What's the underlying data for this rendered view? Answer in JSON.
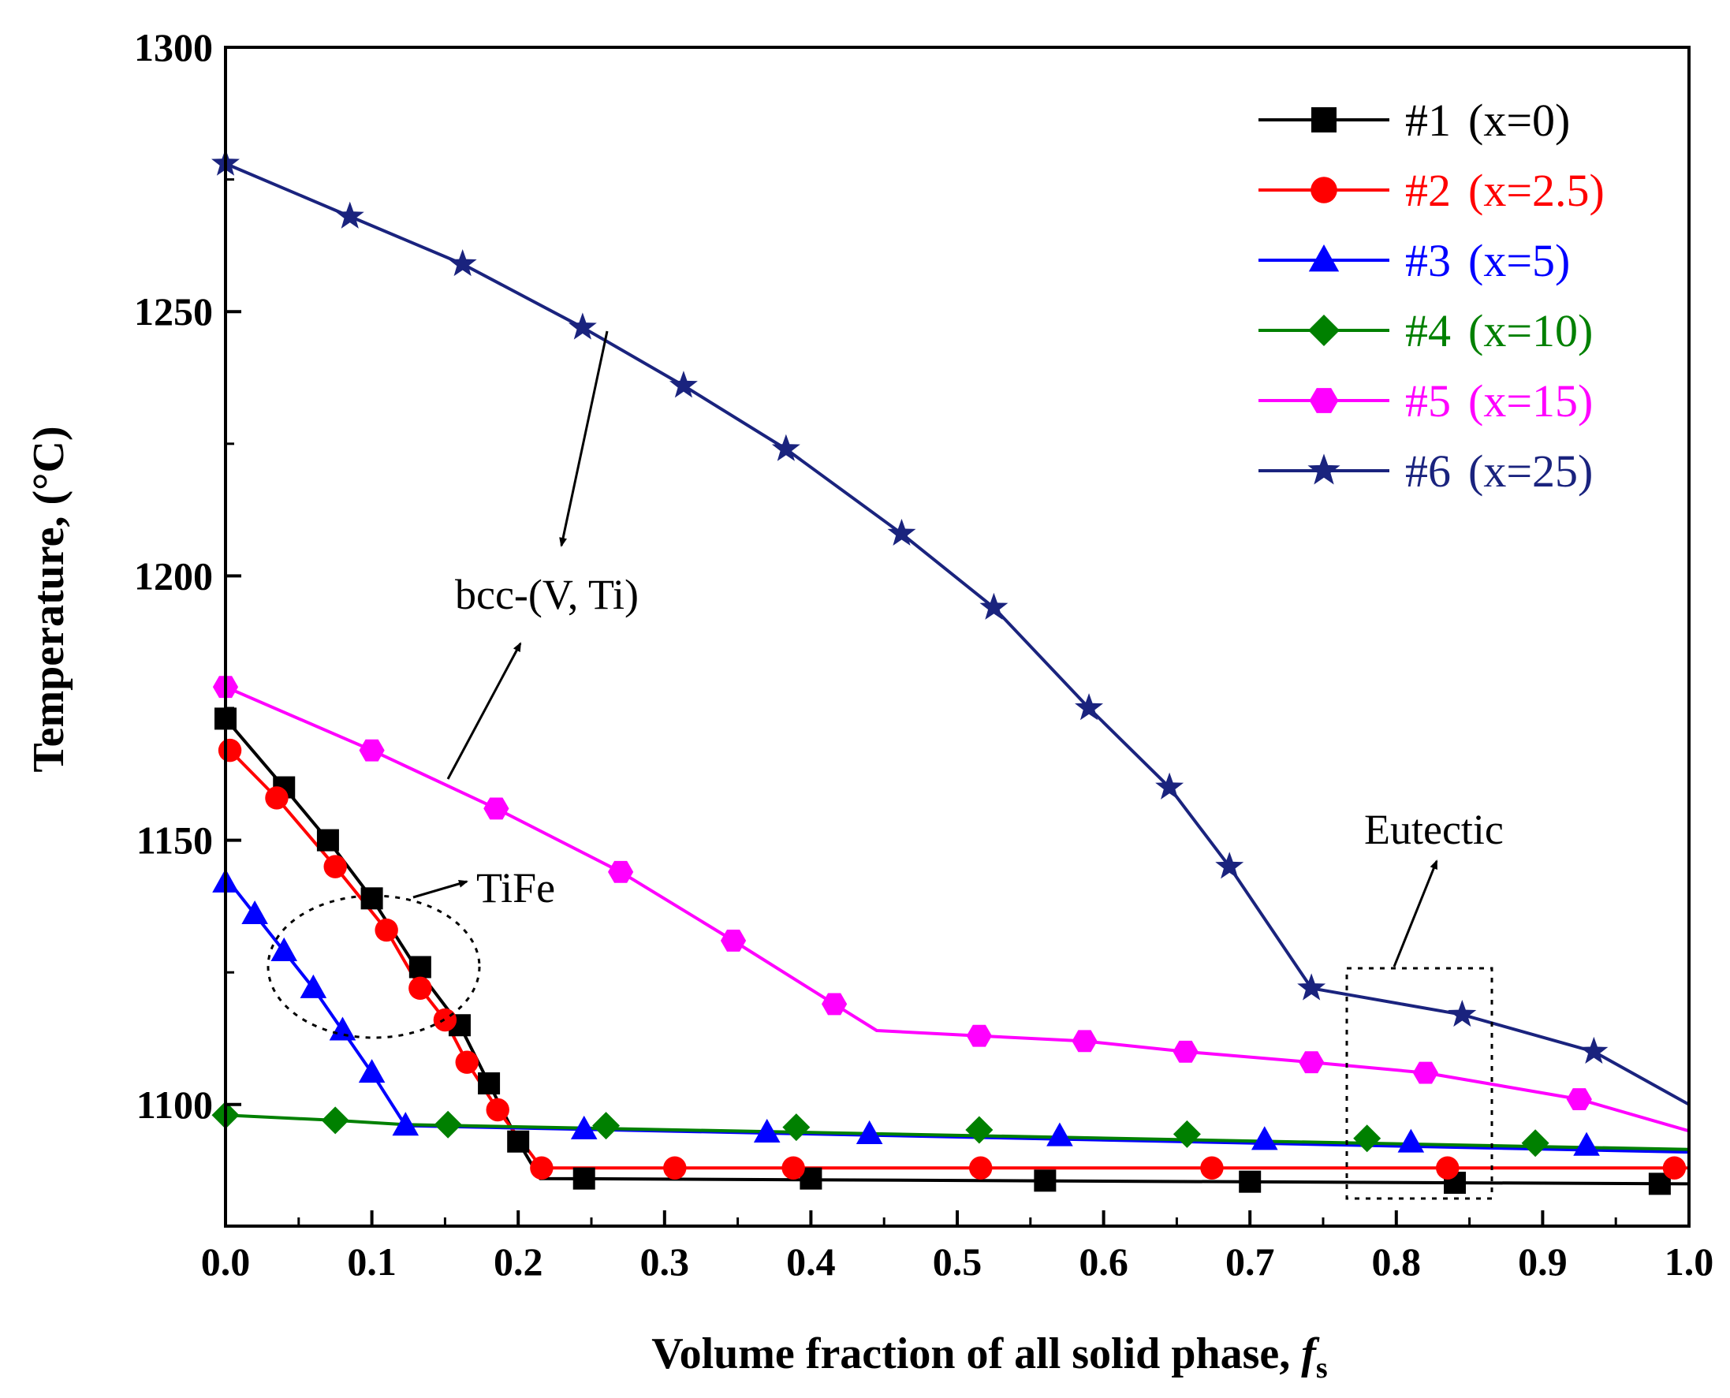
{
  "chart_data": {
    "type": "line",
    "title": "",
    "xlabel": "Volume  fraction of all solid phase, ",
    "xlabel_symbol": "f",
    "xlabel_subscript": "s",
    "ylabel": "Temperature, (°C)",
    "xlim": [
      0.0,
      1.0
    ],
    "ylim": [
      1077,
      1300
    ],
    "xticks": [
      0.0,
      0.1,
      0.2,
      0.3,
      0.4,
      0.5,
      0.6,
      0.7,
      0.8,
      0.9,
      1.0
    ],
    "xtick_labels": [
      "0.0",
      "0.1",
      "0.2",
      "0.3",
      "0.4",
      "0.5",
      "0.6",
      "0.7",
      "0.8",
      "0.9",
      "1.0"
    ],
    "yticks": [
      1100,
      1150,
      1200,
      1250,
      1300
    ],
    "ytick_labels": [
      "1100",
      "1150",
      "1200",
      "1250",
      "1300"
    ],
    "grid": false,
    "legend_position": "top-right",
    "series": [
      {
        "name": "#1",
        "composition": "(x=0)",
        "color": "#000000",
        "marker": "square",
        "line": [
          [
            0.0,
            1173
          ],
          [
            0.04,
            1160
          ],
          [
            0.07,
            1150
          ],
          [
            0.1,
            1139
          ],
          [
            0.13,
            1126
          ],
          [
            0.16,
            1115
          ],
          [
            0.18,
            1104
          ],
          [
            0.2,
            1093
          ],
          [
            0.215,
            1086
          ],
          [
            1.0,
            1085
          ]
        ],
        "markers": [
          [
            0.0,
            1173
          ],
          [
            0.04,
            1160
          ],
          [
            0.07,
            1150
          ],
          [
            0.1,
            1139
          ],
          [
            0.133,
            1126
          ],
          [
            0.16,
            1115
          ],
          [
            0.18,
            1104
          ],
          [
            0.2,
            1093
          ],
          [
            0.245,
            1086
          ],
          [
            0.4,
            1086
          ],
          [
            0.56,
            1085.6
          ],
          [
            0.7,
            1085.4
          ],
          [
            0.84,
            1085.2
          ],
          [
            0.98,
            1085
          ]
        ]
      },
      {
        "name": "#2",
        "composition": "(x=2.5)",
        "color": "#ff0000",
        "marker": "circle",
        "line": [
          [
            0.003,
            1167
          ],
          [
            0.035,
            1158
          ],
          [
            0.075,
            1145
          ],
          [
            0.11,
            1133
          ],
          [
            0.133,
            1122
          ],
          [
            0.15,
            1116
          ],
          [
            0.165,
            1108
          ],
          [
            0.186,
            1099
          ],
          [
            0.216,
            1088
          ],
          [
            1.0,
            1088
          ]
        ],
        "markers": [
          [
            0.003,
            1167
          ],
          [
            0.035,
            1158
          ],
          [
            0.075,
            1145
          ],
          [
            0.11,
            1133
          ],
          [
            0.133,
            1122
          ],
          [
            0.15,
            1116
          ],
          [
            0.165,
            1108
          ],
          [
            0.186,
            1099
          ],
          [
            0.216,
            1088
          ],
          [
            0.307,
            1088
          ],
          [
            0.388,
            1088
          ],
          [
            0.516,
            1088
          ],
          [
            0.674,
            1088
          ],
          [
            0.835,
            1088
          ],
          [
            0.99,
            1088
          ]
        ]
      },
      {
        "name": "#3",
        "composition": "(x=5)",
        "color": "#0000ff",
        "marker": "triangle",
        "line": [
          [
            0.0,
            1143
          ],
          [
            0.02,
            1136
          ],
          [
            0.04,
            1129
          ],
          [
            0.06,
            1122
          ],
          [
            0.08,
            1114
          ],
          [
            0.1,
            1106
          ],
          [
            0.123,
            1096
          ],
          [
            1.0,
            1091
          ]
        ],
        "markers": [
          [
            0.0,
            1142
          ],
          [
            0.02,
            1136
          ],
          [
            0.04,
            1129
          ],
          [
            0.06,
            1122
          ],
          [
            0.08,
            1114
          ],
          [
            0.1,
            1106
          ],
          [
            0.123,
            1096
          ],
          [
            0.245,
            1095.3
          ],
          [
            0.37,
            1094.7
          ],
          [
            0.44,
            1094.4
          ],
          [
            0.57,
            1094
          ],
          [
            0.71,
            1093.3
          ],
          [
            0.81,
            1092.8
          ],
          [
            0.93,
            1092.2
          ]
        ]
      },
      {
        "name": "#4",
        "composition": "(x=10)",
        "color": "#008000",
        "marker": "diamond",
        "line": [
          [
            0.0,
            1098
          ],
          [
            0.075,
            1097
          ],
          [
            0.123,
            1096.2
          ],
          [
            1.0,
            1091.5
          ]
        ],
        "markers": [
          [
            0.0,
            1098
          ],
          [
            0.075,
            1097
          ],
          [
            0.152,
            1096.2
          ],
          [
            0.26,
            1096
          ],
          [
            0.39,
            1095.7
          ],
          [
            0.515,
            1095.2
          ],
          [
            0.657,
            1094.4
          ],
          [
            0.78,
            1093.6
          ],
          [
            0.895,
            1092.7
          ]
        ]
      },
      {
        "name": "#5",
        "composition": "(x=15)",
        "color": "#ff00ff",
        "marker": "hexagon",
        "line": [
          [
            0.0,
            1179
          ],
          [
            0.1,
            1167
          ],
          [
            0.185,
            1156
          ],
          [
            0.27,
            1144
          ],
          [
            0.347,
            1131
          ],
          [
            0.416,
            1119
          ],
          [
            0.445,
            1114
          ],
          [
            0.515,
            1113
          ],
          [
            0.587,
            1112
          ],
          [
            0.656,
            1110
          ],
          [
            0.742,
            1108
          ],
          [
            0.82,
            1106
          ],
          [
            0.925,
            1101
          ],
          [
            1.0,
            1095
          ]
        ],
        "markers": [
          [
            0.0,
            1179
          ],
          [
            0.1,
            1167
          ],
          [
            0.185,
            1156
          ],
          [
            0.27,
            1144
          ],
          [
            0.347,
            1131
          ],
          [
            0.416,
            1119
          ],
          [
            0.515,
            1113
          ],
          [
            0.587,
            1112
          ],
          [
            0.656,
            1110
          ],
          [
            0.742,
            1108
          ],
          [
            0.82,
            1106
          ],
          [
            0.925,
            1101
          ]
        ]
      },
      {
        "name": "#6",
        "composition": "(x=25)",
        "color": "#1a237e",
        "marker": "star",
        "line": [
          [
            0.0,
            1278
          ],
          [
            0.085,
            1268
          ],
          [
            0.162,
            1259
          ],
          [
            0.244,
            1247
          ],
          [
            0.313,
            1236
          ],
          [
            0.383,
            1224
          ],
          [
            0.462,
            1208
          ],
          [
            0.525,
            1194
          ],
          [
            0.59,
            1175
          ],
          [
            0.645,
            1160
          ],
          [
            0.686,
            1145
          ],
          [
            0.742,
            1122
          ],
          [
            0.845,
            1117
          ],
          [
            0.935,
            1110
          ],
          [
            1.0,
            1100
          ]
        ],
        "markers": [
          [
            0.0,
            1278
          ],
          [
            0.085,
            1268
          ],
          [
            0.162,
            1259
          ],
          [
            0.244,
            1247
          ],
          [
            0.313,
            1236
          ],
          [
            0.383,
            1224
          ],
          [
            0.462,
            1208
          ],
          [
            0.525,
            1194
          ],
          [
            0.59,
            1175
          ],
          [
            0.645,
            1160
          ],
          [
            0.686,
            1145
          ],
          [
            0.742,
            1122
          ],
          [
            0.845,
            1117
          ],
          [
            0.935,
            1110
          ]
        ]
      }
    ],
    "annotations": [
      {
        "text": "bcc-(V, Ti)",
        "kind": "label"
      },
      {
        "text": "TiFe",
        "kind": "label"
      },
      {
        "text": "Eutectic",
        "kind": "label"
      }
    ]
  }
}
